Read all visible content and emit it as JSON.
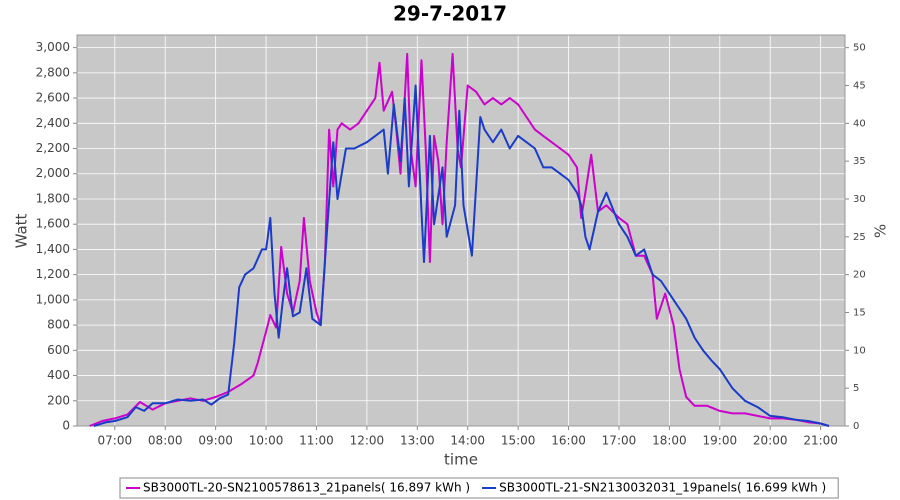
{
  "chart_data": {
    "type": "line",
    "title": "29-7-2017",
    "x_label": "time",
    "y_label": "Watt",
    "y2_label": "%",
    "xlim": [
      "06:15",
      "21:29"
    ],
    "xticks": [
      "07:00",
      "08:00",
      "09:00",
      "10:00",
      "11:00",
      "12:00",
      "13:00",
      "14:00",
      "15:00",
      "16:00",
      "17:00",
      "18:00",
      "19:00",
      "20:00",
      "21:00"
    ],
    "ylim": [
      0,
      3100
    ],
    "yticks": [
      0,
      200,
      400,
      600,
      800,
      {
        "value": 1000,
        "label": "1,000"
      },
      {
        "value": 1200,
        "label": "1,200"
      },
      {
        "value": 1400,
        "label": "1,400"
      },
      {
        "value": 1600,
        "label": "1,600"
      },
      {
        "value": 1800,
        "label": "1,800"
      },
      {
        "value": 2000,
        "label": "2,000"
      },
      {
        "value": 2200,
        "label": "2,200"
      },
      {
        "value": 2400,
        "label": "2,400"
      },
      {
        "value": 2600,
        "label": "2,600"
      },
      {
        "value": 2800,
        "label": "2,800"
      },
      {
        "value": 3000,
        "label": "3,000"
      }
    ],
    "y2lim": [
      0,
      51.67
    ],
    "y2ticks": [
      0,
      5,
      10,
      15,
      20,
      25,
      30,
      35,
      40,
      45,
      50
    ],
    "grid": true,
    "background": "#c8c8c8",
    "series": [
      {
        "name": "SB3000TL-20-SN2100578613_21panels( 16.897 kWh )",
        "color": "#cc00cc",
        "x": [
          "06:30",
          "06:45",
          "07:00",
          "07:15",
          "07:30",
          "07:45",
          "08:00",
          "08:15",
          "08:30",
          "08:45",
          "09:00",
          "09:15",
          "09:30",
          "09:45",
          "09:50",
          "10:00",
          "10:05",
          "10:12",
          "10:18",
          "10:25",
          "10:32",
          "10:40",
          "10:45",
          "10:52",
          "11:00",
          "11:05",
          "11:10",
          "11:15",
          "11:20",
          "11:25",
          "11:30",
          "11:40",
          "11:50",
          "12:00",
          "12:10",
          "12:15",
          "12:20",
          "12:30",
          "12:35",
          "12:40",
          "12:48",
          "12:52",
          "12:58",
          "13:05",
          "13:10",
          "13:15",
          "13:20",
          "13:25",
          "13:30",
          "13:35",
          "13:42",
          "13:48",
          "13:52",
          "14:00",
          "14:10",
          "14:20",
          "14:30",
          "14:40",
          "14:50",
          "15:00",
          "15:10",
          "15:20",
          "15:30",
          "15:40",
          "15:50",
          "16:00",
          "16:10",
          "16:15",
          "16:20",
          "16:27",
          "16:35",
          "16:45",
          "17:00",
          "17:10",
          "17:20",
          "17:30",
          "17:40",
          "17:45",
          "17:55",
          "18:05",
          "18:12",
          "18:20",
          "18:30",
          "18:45",
          "19:00",
          "19:15",
          "19:30",
          "19:45",
          "20:00",
          "20:15",
          "20:30",
          "20:45",
          "21:00",
          "21:10"
        ],
        "values": [
          0,
          40,
          60,
          90,
          190,
          130,
          180,
          200,
          220,
          200,
          230,
          270,
          330,
          400,
          500,
          750,
          880,
          780,
          1420,
          1050,
          900,
          1150,
          1650,
          1150,
          900,
          800,
          1300,
          2350,
          1900,
          2350,
          2400,
          2350,
          2400,
          2500,
          2600,
          2880,
          2500,
          2650,
          2350,
          2000,
          2950,
          2200,
          1900,
          2900,
          2200,
          1300,
          2300,
          2100,
          1600,
          2250,
          2950,
          2200,
          2050,
          2700,
          2650,
          2550,
          2600,
          2550,
          2600,
          2550,
          2450,
          2350,
          2300,
          2250,
          2200,
          2150,
          2050,
          1650,
          1850,
          2150,
          1700,
          1750,
          1650,
          1600,
          1350,
          1350,
          1200,
          850,
          1050,
          800,
          450,
          230,
          160,
          160,
          120,
          100,
          100,
          80,
          60,
          60,
          50,
          30,
          20,
          0
        ]
      },
      {
        "name": "SB3000TL-21-SN2130032031_19panels( 16.699 kWh )",
        "color": "#1a3cc8",
        "x": [
          "06:35",
          "06:50",
          "07:00",
          "07:15",
          "07:25",
          "07:35",
          "07:45",
          "08:00",
          "08:15",
          "08:30",
          "08:45",
          "08:55",
          "09:05",
          "09:15",
          "09:22",
          "09:28",
          "09:35",
          "09:45",
          "09:55",
          "10:00",
          "10:05",
          "10:10",
          "10:15",
          "10:20",
          "10:25",
          "10:32",
          "10:40",
          "10:48",
          "10:55",
          "11:05",
          "11:12",
          "11:20",
          "11:25",
          "11:30",
          "11:35",
          "11:45",
          "12:00",
          "12:10",
          "12:20",
          "12:25",
          "12:32",
          "12:40",
          "12:45",
          "12:50",
          "12:58",
          "13:05",
          "13:08",
          "13:15",
          "13:20",
          "13:30",
          "13:35",
          "13:45",
          "13:50",
          "13:55",
          "14:05",
          "14:15",
          "14:20",
          "14:30",
          "14:40",
          "14:50",
          "15:00",
          "15:10",
          "15:20",
          "15:30",
          "15:40",
          "15:50",
          "16:00",
          "16:10",
          "16:15",
          "16:20",
          "16:25",
          "16:35",
          "16:45",
          "17:00",
          "17:10",
          "17:20",
          "17:30",
          "17:40",
          "17:50",
          "18:05",
          "18:20",
          "18:30",
          "18:40",
          "18:50",
          "19:00",
          "19:15",
          "19:30",
          "19:45",
          "20:00",
          "20:15",
          "20:30",
          "20:45",
          "21:00",
          "21:10"
        ],
        "values": [
          0,
          30,
          40,
          70,
          150,
          120,
          180,
          180,
          210,
          200,
          210,
          170,
          220,
          250,
          650,
          1100,
          1200,
          1250,
          1400,
          1400,
          1650,
          1050,
          700,
          1000,
          1250,
          870,
          900,
          1250,
          850,
          800,
          1500,
          2250,
          1800,
          2000,
          2200,
          2200,
          2250,
          2300,
          2350,
          2000,
          2550,
          2100,
          2600,
          1900,
          2700,
          1700,
          1300,
          2300,
          1600,
          2050,
          1500,
          1750,
          2500,
          1750,
          1350,
          2450,
          2350,
          2250,
          2350,
          2200,
          2300,
          2250,
          2200,
          2050,
          2050,
          2000,
          1950,
          1850,
          1750,
          1500,
          1400,
          1700,
          1850,
          1600,
          1500,
          1350,
          1400,
          1200,
          1150,
          1000,
          850,
          700,
          600,
          520,
          450,
          300,
          200,
          150,
          80,
          70,
          50,
          40,
          20,
          0
        ]
      }
    ]
  }
}
